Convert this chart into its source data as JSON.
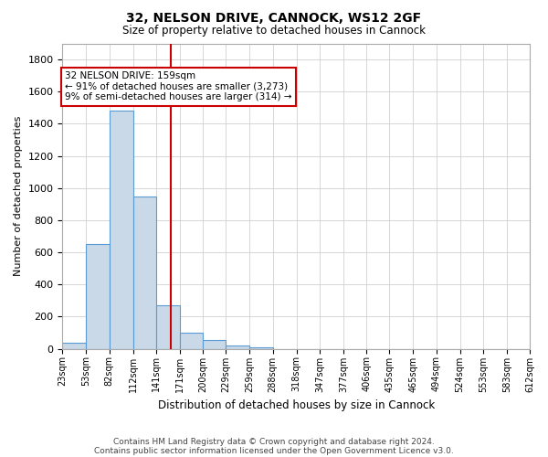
{
  "title1": "32, NELSON DRIVE, CANNOCK, WS12 2GF",
  "title2": "Size of property relative to detached houses in Cannock",
  "xlabel": "Distribution of detached houses by size in Cannock",
  "ylabel": "Number of detached properties",
  "bar_edges": [
    23,
    53,
    82,
    112,
    141,
    171,
    200,
    229,
    259,
    288,
    318,
    347,
    377,
    406,
    435,
    465,
    494,
    524,
    553,
    583,
    612
  ],
  "bar_heights": [
    35,
    650,
    1480,
    950,
    270,
    100,
    55,
    20,
    8,
    0,
    0,
    0,
    0,
    0,
    0,
    0,
    0,
    0,
    0,
    0
  ],
  "bar_color": "#c9d9e8",
  "bar_edgecolor": "#5b9bd5",
  "property_size": 159,
  "property_line_color": "#cc0000",
  "annotation_line1": "32 NELSON DRIVE: 159sqm",
  "annotation_line2": "← 91% of detached houses are smaller (3,273)",
  "annotation_line3": "9% of semi-detached houses are larger (314) →",
  "annotation_box_color": "#cc0000",
  "ylim": [
    0,
    1900
  ],
  "yticks": [
    0,
    200,
    400,
    600,
    800,
    1000,
    1200,
    1400,
    1600,
    1800
  ],
  "footnote1": "Contains HM Land Registry data © Crown copyright and database right 2024.",
  "footnote2": "Contains public sector information licensed under the Open Government Licence v3.0.",
  "background_color": "#ffffff",
  "grid_color": "#d0d0d0"
}
